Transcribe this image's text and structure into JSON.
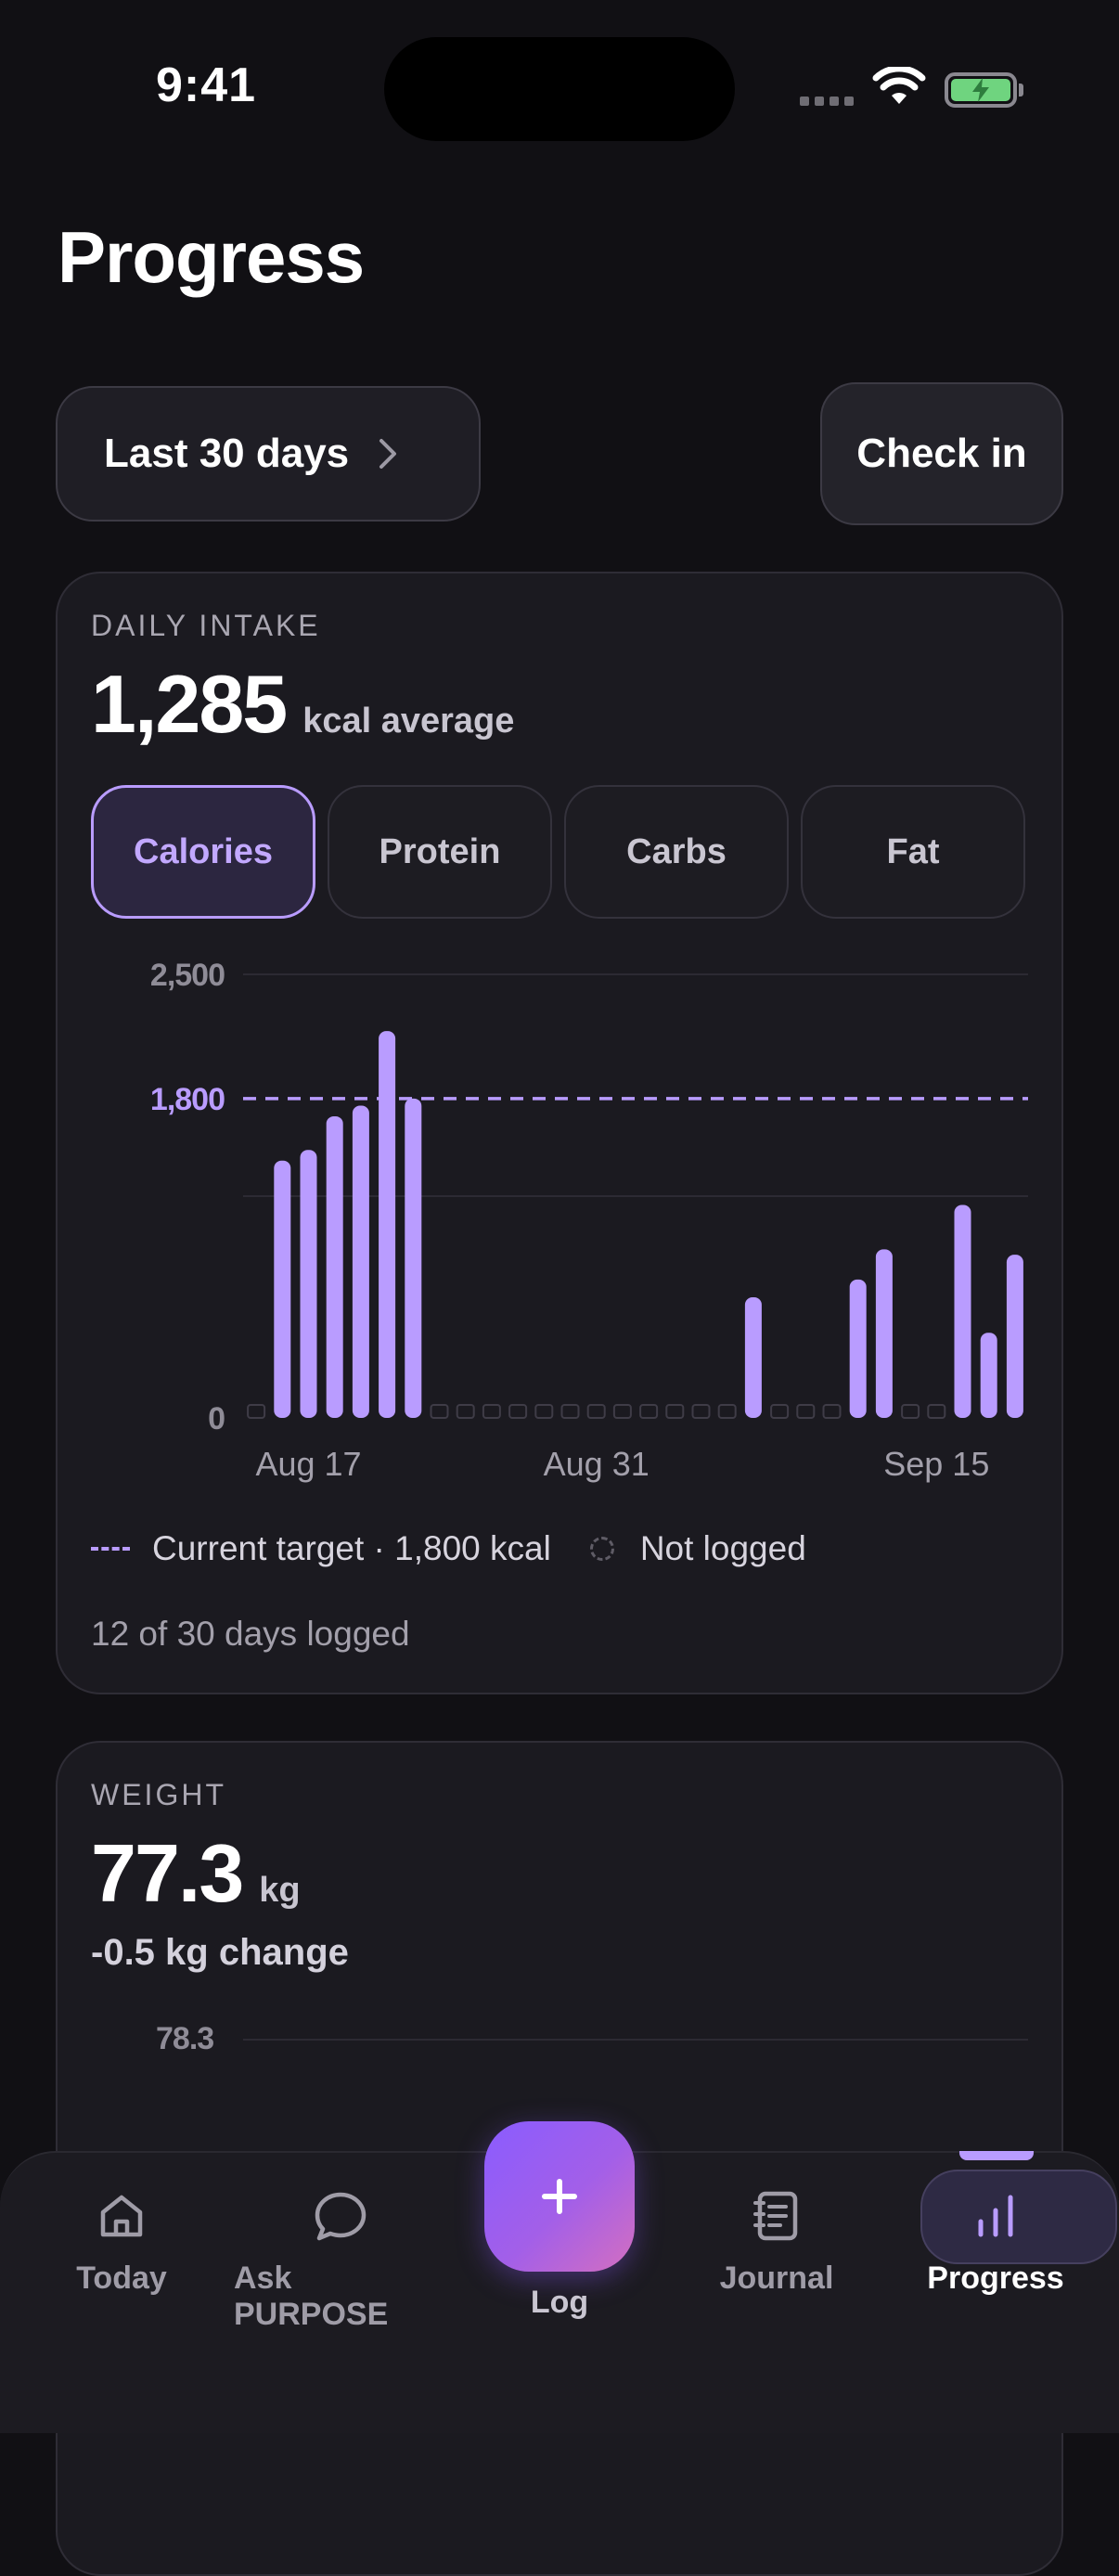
{
  "status_bar": {
    "time": "9:41"
  },
  "header": {
    "title": "Progress"
  },
  "controls": {
    "range_label": "Last 30 days",
    "checkin_label": "Check in"
  },
  "daily_intake": {
    "kicker": "DAILY INTAKE",
    "value": "1,285",
    "unit": "kcal average",
    "tabs": [
      {
        "label": "Calories",
        "active": true
      },
      {
        "label": "Protein",
        "active": false
      },
      {
        "label": "Carbs",
        "active": false
      },
      {
        "label": "Fat",
        "active": false
      }
    ],
    "legend_target": "Current target · 1,800 kcal",
    "legend_not_logged": "Not logged",
    "logged_summary": "12 of 30 days logged"
  },
  "chart_data": {
    "type": "bar",
    "y_ticks": [
      "2,500",
      "1,800",
      "0"
    ],
    "x_tick_labels": [
      "Aug 17",
      "Aug 31",
      "Sep 15"
    ],
    "ylim": [
      0,
      2500
    ],
    "target": 1800,
    "target_label": "1,800",
    "accent": "#b99cff",
    "values": [
      null,
      1450,
      1510,
      1700,
      1760,
      2180,
      1800,
      null,
      null,
      null,
      null,
      null,
      null,
      null,
      null,
      null,
      null,
      null,
      null,
      680,
      null,
      null,
      null,
      780,
      950,
      null,
      null,
      1200,
      480,
      920
    ]
  },
  "weight": {
    "kicker": "WEIGHT",
    "value": "77.3",
    "unit": "kg",
    "change": "-0.5 kg change",
    "tick_top": "78.3"
  },
  "tab_bar": {
    "items": [
      {
        "label": "Today",
        "icon": "home-icon"
      },
      {
        "label": "Ask PURPOSE",
        "icon": "chat-bubble-icon"
      },
      {
        "label": "Log",
        "icon": "plus-icon"
      },
      {
        "label": "Journal",
        "icon": "notebook-icon"
      },
      {
        "label": "Progress",
        "icon": "bar-chart-icon"
      }
    ]
  },
  "colors": {
    "accent": "#b99cff",
    "background": "#111014",
    "card": "#1b1a20",
    "battery": "#6fd47f"
  }
}
